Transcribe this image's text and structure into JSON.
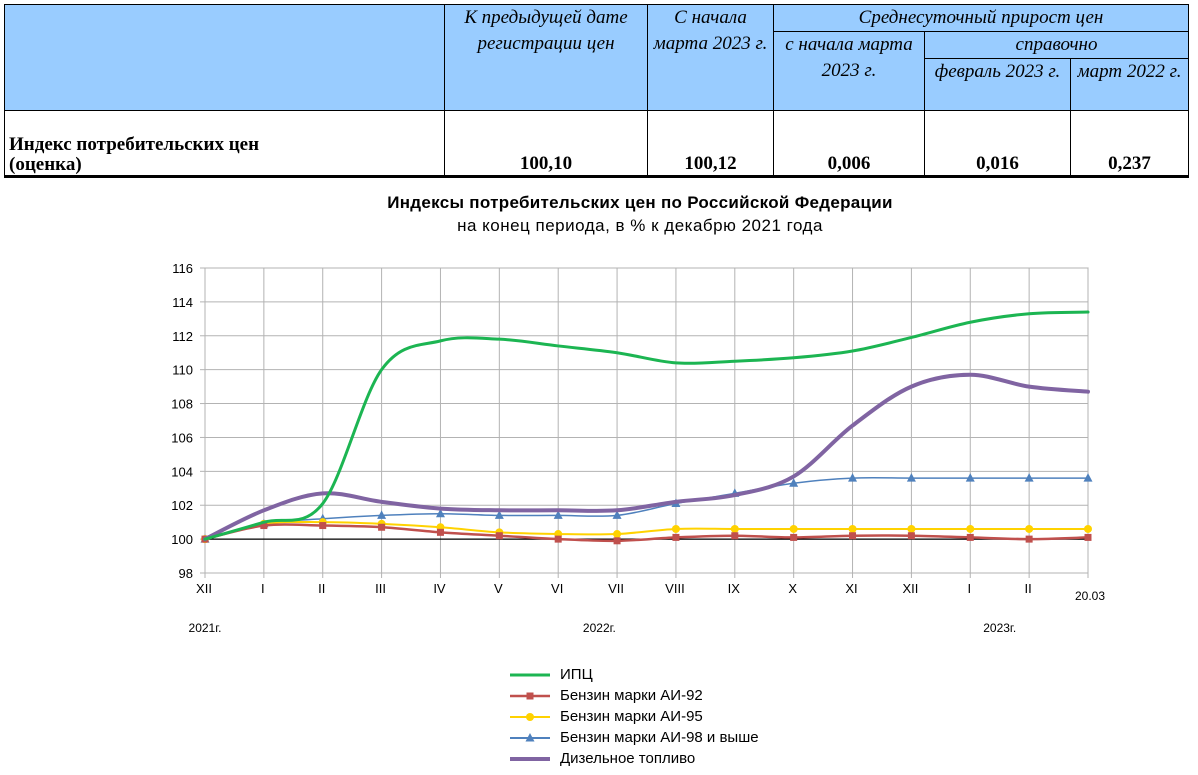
{
  "table": {
    "headers": {
      "prev_date": "К предыдущей дате регистрации цен",
      "since_march": "С начала марта 2023 г.",
      "daily_growth": "Среднесуточный прирост цен",
      "since_march_2023": "с начала марта 2023 г.",
      "reference": "справочно",
      "feb_2023": "февраль 2023 г.",
      "mar_2022": "март 2022 г."
    },
    "row": {
      "label_line1": "Индекс потребительских цен",
      "label_line2": "(оценка)",
      "values": [
        "100,10",
        "100,12",
        "0,006",
        "0,016",
        "0,237"
      ]
    }
  },
  "chart_data": {
    "type": "line",
    "title": "Индексы потребительских цен по Российской Федерации",
    "subtitle": "на конец периода, в % к декабрю 2021 года",
    "categories": [
      "XII",
      "I",
      "II",
      "III",
      "IV",
      "V",
      "VI",
      "VII",
      "VIII",
      "IX",
      "X",
      "XI",
      "XII",
      "I",
      "II",
      "20.03"
    ],
    "year_labels": [
      {
        "text": "2021г.",
        "index": 0
      },
      {
        "text": "2022г.",
        "index": 6.7
      },
      {
        "text": "2023г.",
        "index": 13.5
      }
    ],
    "ylim": [
      98,
      116
    ],
    "yticks": [
      98,
      100,
      102,
      104,
      106,
      108,
      110,
      112,
      114,
      116
    ],
    "baseline": 100,
    "series": [
      {
        "name": "ИПЦ",
        "color": "#1cb552",
        "width": 3,
        "marker": "none",
        "values": [
          100.0,
          101.0,
          102.1,
          110.0,
          111.7,
          111.8,
          111.4,
          111.0,
          110.4,
          110.5,
          110.7,
          111.1,
          111.9,
          112.8,
          113.3,
          113.4
        ]
      },
      {
        "name": "Бензин марки АИ-92",
        "color": "#c0504d",
        "width": 2.5,
        "marker": "square",
        "values": [
          100.0,
          100.8,
          100.8,
          100.7,
          100.4,
          100.2,
          100.0,
          99.9,
          100.1,
          100.2,
          100.1,
          100.2,
          100.2,
          100.1,
          100.0,
          100.1
        ]
      },
      {
        "name": "Бензин марки АИ-95",
        "color": "#ffd200",
        "width": 2,
        "marker": "circle",
        "values": [
          100.0,
          100.9,
          101.0,
          100.9,
          100.7,
          100.4,
          100.3,
          100.3,
          100.6,
          100.6,
          100.6,
          100.6,
          100.6,
          100.6,
          100.6,
          100.6
        ]
      },
      {
        "name": "Бензин марки АИ-98 и выше",
        "color": "#4f81bd",
        "width": 1.5,
        "marker": "triangle",
        "values": [
          100.0,
          100.9,
          101.2,
          101.4,
          101.5,
          101.4,
          101.4,
          101.4,
          102.1,
          102.7,
          103.3,
          103.6,
          103.6,
          103.6,
          103.6,
          103.6
        ]
      },
      {
        "name": "Дизельное топливо",
        "color": "#8064a2",
        "width": 4,
        "marker": "none",
        "values": [
          100.0,
          101.7,
          102.7,
          102.2,
          101.8,
          101.7,
          101.7,
          101.7,
          102.2,
          102.6,
          103.7,
          106.7,
          109.0,
          109.7,
          109.0,
          108.7
        ]
      }
    ]
  }
}
